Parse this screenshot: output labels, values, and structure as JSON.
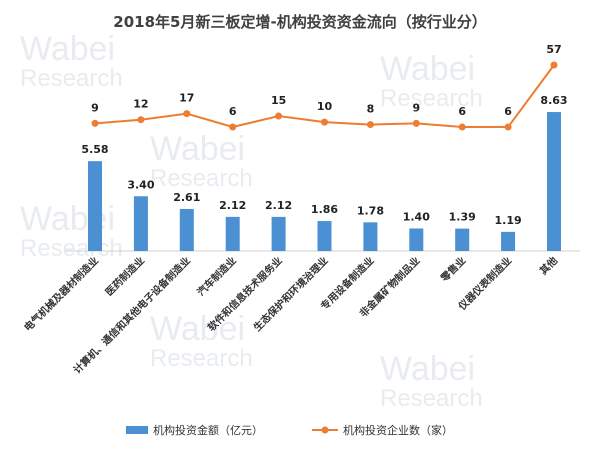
{
  "chart_data": {
    "type": "bar+line",
    "title": "2018年5月新三板定增-机构投资资金流向（按行业分）",
    "categories": [
      "电气机械及器材制造业",
      "医药制造业",
      "计算机、通信和其他电子设备制造业",
      "汽车制造业",
      "软件和信息技术服务业",
      "生态保护和环境治理业",
      "专用设备制造业",
      "非金属矿物制品业",
      "零售业",
      "仪器仪表制造业",
      "其他"
    ],
    "series": [
      {
        "name": "机构投资金额（亿元）",
        "type": "bar",
        "color": "#4a90d2",
        "values": [
          5.58,
          3.4,
          2.61,
          2.12,
          2.12,
          1.86,
          1.78,
          1.4,
          1.39,
          1.19,
          8.63
        ],
        "labels": [
          "5.58",
          "3.40",
          "2.61",
          "2.12",
          "2.12",
          "1.86",
          "1.78",
          "1.40",
          "1.39",
          "1.19",
          "8.63"
        ]
      },
      {
        "name": "机构投资企业数（家）",
        "type": "line",
        "color": "#ed7d31",
        "values": [
          9,
          12,
          17,
          6,
          15,
          10,
          8,
          9,
          6,
          6,
          57
        ]
      }
    ],
    "legend_position": "bottom",
    "grid": false,
    "watermark": "Wabei Research 挖贝新三板研究院"
  }
}
